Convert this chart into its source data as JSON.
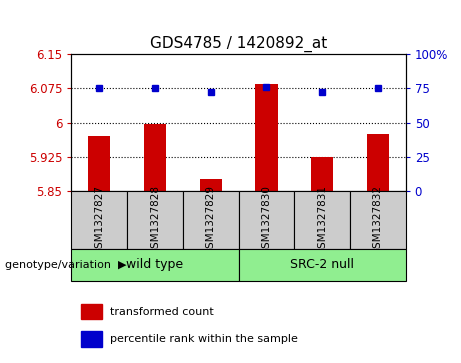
{
  "title": "GDS4785 / 1420892_at",
  "samples": [
    "GSM1327827",
    "GSM1327828",
    "GSM1327829",
    "GSM1327830",
    "GSM1327831",
    "GSM1327832"
  ],
  "red_values": [
    5.97,
    5.996,
    5.875,
    6.085,
    5.924,
    5.975
  ],
  "blue_values": [
    6.075,
    6.075,
    6.068,
    6.078,
    6.068,
    6.075
  ],
  "ylim_left": [
    5.85,
    6.15
  ],
  "yticks_left": [
    5.85,
    5.925,
    6.0,
    6.075,
    6.15
  ],
  "ytick_labels_left": [
    "5.85",
    "5.925",
    "6",
    "6.075",
    "6.15"
  ],
  "yticks_right": [
    0,
    25,
    50,
    75,
    100
  ],
  "ytick_labels_right": [
    "0",
    "25",
    "50",
    "75",
    "100%"
  ],
  "grid_lines": [
    5.925,
    6.0,
    6.075
  ],
  "group_label_prefix": "genotype/variation",
  "group_arrow": "▶",
  "bar_color": "#CC0000",
  "dot_color": "#0000CC",
  "bar_width": 0.4,
  "base_value": 5.85,
  "ylabel_color": "#CC0000",
  "right_axis_color": "#0000CC",
  "title_fontsize": 11,
  "tick_fontsize": 8.5,
  "label_fontsize": 7.5,
  "group_fontsize": 9,
  "legend_red": "transformed count",
  "legend_blue": "percentile rank within the sample",
  "legend_fontsize": 8,
  "sample_box_color": "#CCCCCC",
  "group_box_color": "#90EE90",
  "group_ranges": [
    [
      -0.5,
      2.5,
      "wild type"
    ],
    [
      2.5,
      5.5,
      "SRC-2 null"
    ]
  ]
}
